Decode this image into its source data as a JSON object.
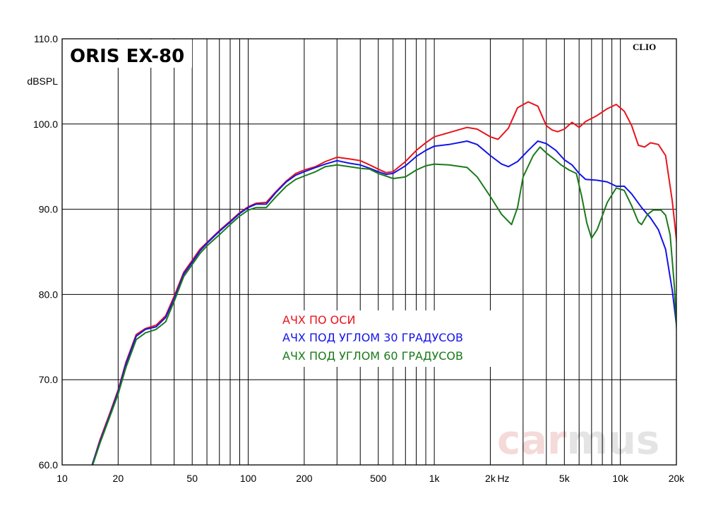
{
  "chart_data": {
    "type": "line",
    "title": "ORIS EX-80",
    "brand": "CLIO",
    "watermark": {
      "part1": "car",
      "part2": "mus"
    },
    "xlabel": "Hz",
    "ylabel": "dBSPL",
    "x_scale": "log",
    "xlim": [
      10,
      20000
    ],
    "ylim": [
      60,
      110
    ],
    "grid": true,
    "legend_placement": "center",
    "x_tick_labels": [
      {
        "value": 10,
        "label": "10"
      },
      {
        "value": 20,
        "label": "20"
      },
      {
        "value": 50,
        "label": "50"
      },
      {
        "value": 100,
        "label": "100"
      },
      {
        "value": 200,
        "label": "200"
      },
      {
        "value": 500,
        "label": "500"
      },
      {
        "value": 1000,
        "label": "1k"
      },
      {
        "value": 2000,
        "label": "2k"
      },
      {
        "value": 5000,
        "label": "5k"
      },
      {
        "value": 10000,
        "label": "10k"
      },
      {
        "value": 20000,
        "label": "20k"
      }
    ],
    "y_tick_labels": [
      {
        "value": 60,
        "label": "60.0"
      },
      {
        "value": 70,
        "label": "70.0"
      },
      {
        "value": 80,
        "label": "80.0"
      },
      {
        "value": 90,
        "label": "90.0"
      },
      {
        "value": 100,
        "label": "100.0"
      },
      {
        "value": 110,
        "label": "110.0"
      }
    ],
    "series": [
      {
        "name": "АЧХ ПО ОСИ",
        "color": "#e8141c",
        "points": [
          [
            14.5,
            60
          ],
          [
            16,
            63
          ],
          [
            18,
            66
          ],
          [
            20,
            68.8
          ],
          [
            22,
            72
          ],
          [
            25,
            75.3
          ],
          [
            28,
            76
          ],
          [
            32,
            76.4
          ],
          [
            36,
            77.5
          ],
          [
            40,
            79.8
          ],
          [
            45,
            82.6
          ],
          [
            50,
            84
          ],
          [
            55,
            85.3
          ],
          [
            60,
            86.1
          ],
          [
            70,
            87.5
          ],
          [
            80,
            88.6
          ],
          [
            90,
            89.6
          ],
          [
            100,
            90.3
          ],
          [
            110,
            90.7
          ],
          [
            125,
            90.8
          ],
          [
            140,
            92
          ],
          [
            160,
            93.3
          ],
          [
            180,
            94.2
          ],
          [
            200,
            94.6
          ],
          [
            230,
            95
          ],
          [
            260,
            95.6
          ],
          [
            300,
            96.1
          ],
          [
            350,
            95.9
          ],
          [
            400,
            95.7
          ],
          [
            450,
            95.2
          ],
          [
            500,
            94.7
          ],
          [
            550,
            94.3
          ],
          [
            600,
            94.4
          ],
          [
            700,
            95.6
          ],
          [
            800,
            96.9
          ],
          [
            900,
            97.8
          ],
          [
            1000,
            98.5
          ],
          [
            1200,
            99
          ],
          [
            1500,
            99.6
          ],
          [
            1700,
            99.4
          ],
          [
            2000,
            98.5
          ],
          [
            2200,
            98.2
          ],
          [
            2500,
            99.5
          ],
          [
            2800,
            101.9
          ],
          [
            3200,
            102.6
          ],
          [
            3600,
            102.1
          ],
          [
            4000,
            99.8
          ],
          [
            4300,
            99.3
          ],
          [
            4600,
            99.1
          ],
          [
            5000,
            99.4
          ],
          [
            5500,
            100.2
          ],
          [
            6000,
            99.6
          ],
          [
            6500,
            100.3
          ],
          [
            7500,
            101
          ],
          [
            8500,
            101.8
          ],
          [
            9500,
            102.3
          ],
          [
            10500,
            101.5
          ],
          [
            11500,
            99.8
          ],
          [
            12500,
            97.5
          ],
          [
            13500,
            97.3
          ],
          [
            14500,
            97.8
          ],
          [
            16000,
            97.6
          ],
          [
            17500,
            96.3
          ],
          [
            19000,
            91
          ],
          [
            20000,
            86.5
          ],
          [
            21000,
            81.5
          ]
        ]
      },
      {
        "name": "АЧХ ПОД УГЛОМ 30 ГРАДУСОВ",
        "color": "#1414e8",
        "points": [
          [
            14.5,
            60
          ],
          [
            16,
            62.8
          ],
          [
            18,
            65.8
          ],
          [
            20,
            68.6
          ],
          [
            22,
            71.8
          ],
          [
            25,
            75.1
          ],
          [
            28,
            75.9
          ],
          [
            32,
            76.2
          ],
          [
            36,
            77.3
          ],
          [
            40,
            79.5
          ],
          [
            45,
            82.4
          ],
          [
            50,
            83.8
          ],
          [
            55,
            85.1
          ],
          [
            60,
            86
          ],
          [
            70,
            87.4
          ],
          [
            80,
            88.5
          ],
          [
            90,
            89.5
          ],
          [
            100,
            90.2
          ],
          [
            110,
            90.6
          ],
          [
            125,
            90.6
          ],
          [
            140,
            91.9
          ],
          [
            160,
            93.2
          ],
          [
            180,
            94
          ],
          [
            200,
            94.4
          ],
          [
            230,
            94.9
          ],
          [
            260,
            95.3
          ],
          [
            300,
            95.7
          ],
          [
            350,
            95.4
          ],
          [
            400,
            95.2
          ],
          [
            450,
            94.8
          ],
          [
            500,
            94.4
          ],
          [
            550,
            94.1
          ],
          [
            600,
            94.2
          ],
          [
            700,
            95.1
          ],
          [
            800,
            96.2
          ],
          [
            900,
            96.9
          ],
          [
            1000,
            97.4
          ],
          [
            1200,
            97.6
          ],
          [
            1500,
            98
          ],
          [
            1700,
            97.6
          ],
          [
            2000,
            96.3
          ],
          [
            2300,
            95.3
          ],
          [
            2500,
            95
          ],
          [
            2800,
            95.6
          ],
          [
            3200,
            96.9
          ],
          [
            3600,
            98
          ],
          [
            4000,
            97.7
          ],
          [
            4500,
            96.9
          ],
          [
            5000,
            95.8
          ],
          [
            5500,
            95.2
          ],
          [
            6000,
            94.2
          ],
          [
            6500,
            93.5
          ],
          [
            7500,
            93.4
          ],
          [
            8500,
            93.2
          ],
          [
            9500,
            92.7
          ],
          [
            10500,
            92.7
          ],
          [
            11500,
            91.8
          ],
          [
            13000,
            90.2
          ],
          [
            14500,
            89
          ],
          [
            16000,
            87.6
          ],
          [
            17500,
            85.3
          ],
          [
            19000,
            80.5
          ],
          [
            20000,
            76.5
          ],
          [
            21000,
            72
          ]
        ]
      },
      {
        "name": "АЧХ ПОД УГЛОМ 60 ГРАДУСОВ",
        "color": "#1a7a1a",
        "points": [
          [
            14.5,
            59.8
          ],
          [
            16,
            62.6
          ],
          [
            18,
            65.6
          ],
          [
            20,
            68.3
          ],
          [
            22,
            71.4
          ],
          [
            25,
            74.7
          ],
          [
            28,
            75.5
          ],
          [
            32,
            75.9
          ],
          [
            36,
            76.8
          ],
          [
            40,
            79.2
          ],
          [
            45,
            82.1
          ],
          [
            50,
            83.5
          ],
          [
            55,
            84.8
          ],
          [
            60,
            85.7
          ],
          [
            70,
            87
          ],
          [
            80,
            88.2
          ],
          [
            90,
            89.2
          ],
          [
            100,
            89.9
          ],
          [
            110,
            90.2
          ],
          [
            125,
            90.2
          ],
          [
            140,
            91.4
          ],
          [
            160,
            92.7
          ],
          [
            180,
            93.5
          ],
          [
            200,
            93.9
          ],
          [
            230,
            94.4
          ],
          [
            260,
            95
          ],
          [
            300,
            95.2
          ],
          [
            350,
            95
          ],
          [
            400,
            94.8
          ],
          [
            450,
            94.7
          ],
          [
            500,
            94.2
          ],
          [
            550,
            93.9
          ],
          [
            600,
            93.6
          ],
          [
            700,
            93.8
          ],
          [
            800,
            94.6
          ],
          [
            900,
            95.1
          ],
          [
            1000,
            95.3
          ],
          [
            1200,
            95.2
          ],
          [
            1500,
            94.9
          ],
          [
            1700,
            93.8
          ],
          [
            2000,
            91.5
          ],
          [
            2300,
            89.4
          ],
          [
            2600,
            88.2
          ],
          [
            2800,
            90.2
          ],
          [
            3000,
            93.8
          ],
          [
            3400,
            96.3
          ],
          [
            3700,
            97.3
          ],
          [
            4000,
            96.6
          ],
          [
            4400,
            95.9
          ],
          [
            4800,
            95.2
          ],
          [
            5300,
            94.6
          ],
          [
            5800,
            94.2
          ],
          [
            6200,
            91.5
          ],
          [
            6600,
            88.4
          ],
          [
            7000,
            86.6
          ],
          [
            7500,
            87.6
          ],
          [
            8500,
            90.8
          ],
          [
            9500,
            92.5
          ],
          [
            10500,
            92.2
          ],
          [
            11500,
            90.4
          ],
          [
            12500,
            88.5
          ],
          [
            13000,
            88.2
          ],
          [
            14000,
            89.4
          ],
          [
            15000,
            89.9
          ],
          [
            16500,
            89.9
          ],
          [
            17500,
            89.3
          ],
          [
            18500,
            87
          ],
          [
            19500,
            81
          ],
          [
            20300,
            74
          ],
          [
            21000,
            68
          ]
        ]
      }
    ]
  }
}
